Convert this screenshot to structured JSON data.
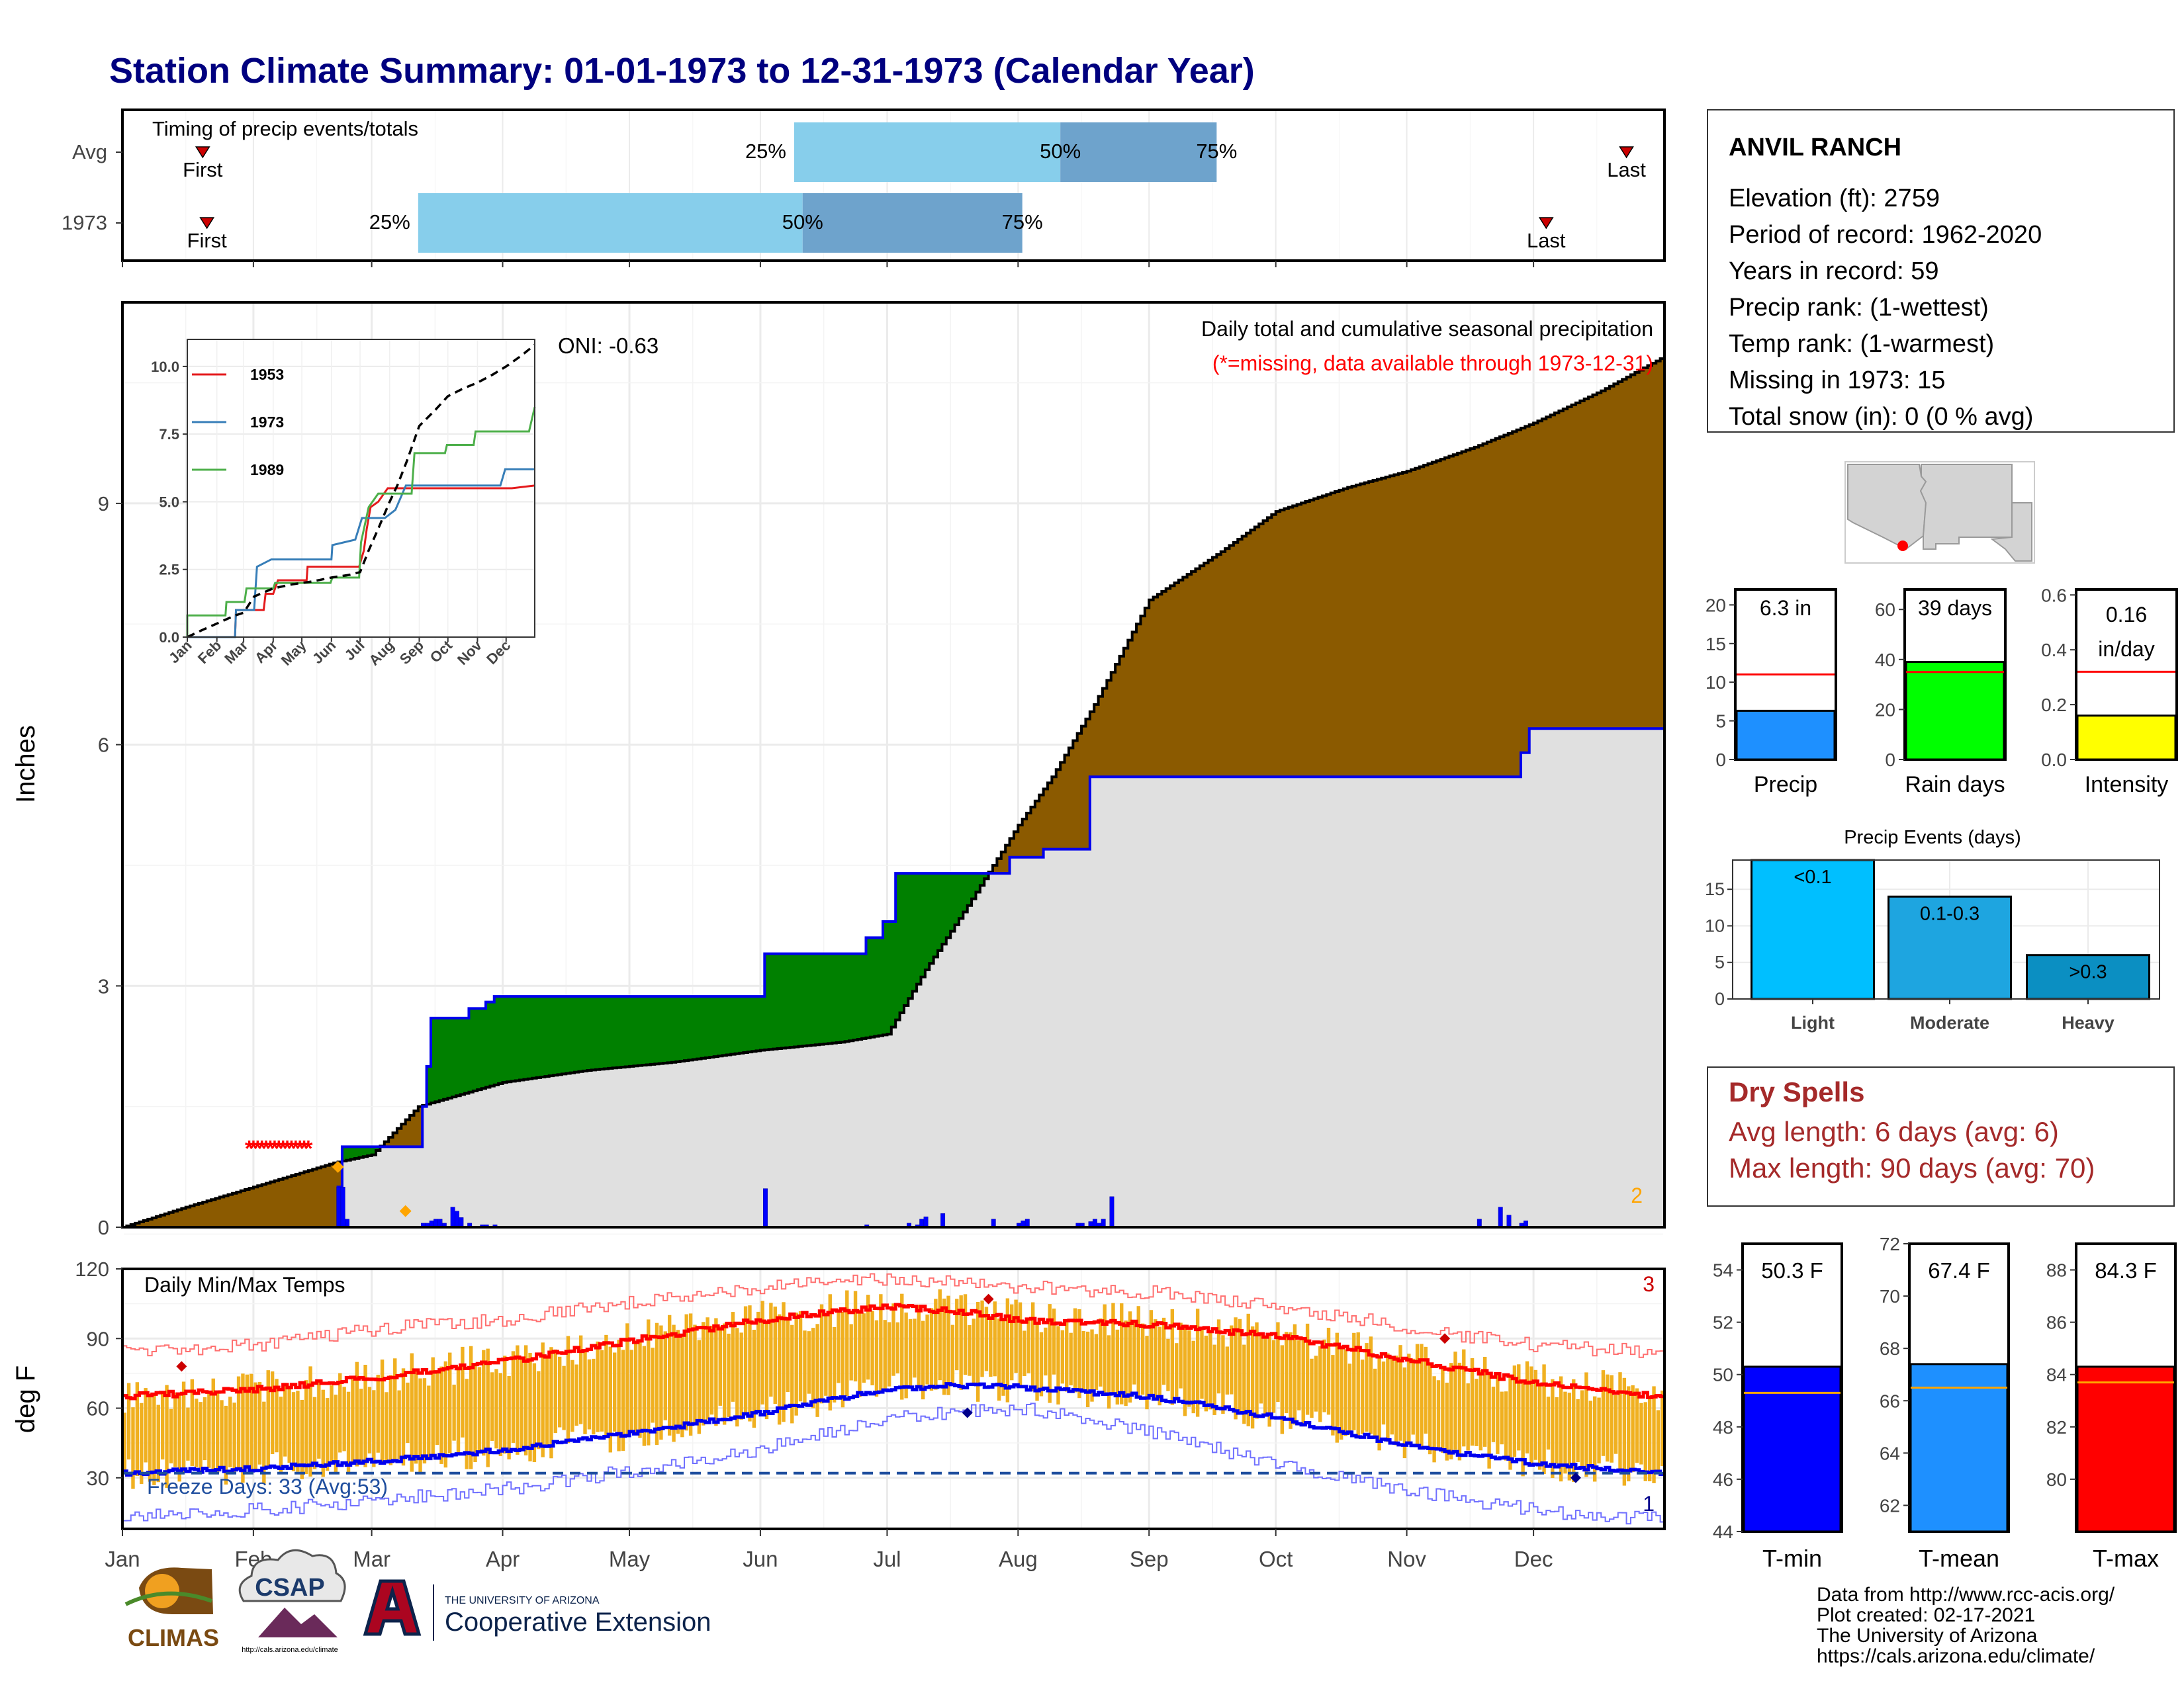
{
  "title": "Station Climate Summary: 01-01-1973 to 12-31-1973 (Calendar Year)",
  "timing": {
    "label": "Timing of precip events/totals",
    "rows": [
      {
        "name": "Avg",
        "first_day": 19,
        "last_day": 356,
        "q25": 159,
        "q50": 222,
        "q75": 259
      },
      {
        "name": "1973",
        "first_day": 20,
        "last_day": 337,
        "q25": 70,
        "q50": 161,
        "q75": 213
      }
    ],
    "first_label": "First",
    "last_label": "Last",
    "q25_label": "25%",
    "q50_label": "50%",
    "q75_label": "75%"
  },
  "precip": {
    "ylabel": "Inches",
    "ytick_labels": [
      "0",
      "3",
      "6",
      "9"
    ],
    "oni_label": "ONI: -0.63",
    "caption": "Daily total and cumulative seasonal precipitation",
    "missing_note": "(*=missing, data available through 1973-12-31)",
    "corner_count": "2",
    "ylim": [
      0,
      11.5
    ],
    "cumulative_avg": [
      [
        0,
        0
      ],
      [
        15,
        0.25
      ],
      [
        31,
        0.5
      ],
      [
        50,
        0.8
      ],
      [
        59,
        0.9
      ],
      [
        70,
        1.5
      ],
      [
        90,
        1.8
      ],
      [
        110,
        1.95
      ],
      [
        130,
        2.05
      ],
      [
        151,
        2.2
      ],
      [
        170,
        2.3
      ],
      [
        181,
        2.4
      ],
      [
        190,
        3.2
      ],
      [
        200,
        4.0
      ],
      [
        212,
        5.0
      ],
      [
        220,
        5.6
      ],
      [
        230,
        6.5
      ],
      [
        243,
        7.8
      ],
      [
        260,
        8.4
      ],
      [
        273,
        8.9
      ],
      [
        290,
        9.2
      ],
      [
        304,
        9.4
      ],
      [
        320,
        9.7
      ],
      [
        334,
        10.0
      ],
      [
        350,
        10.4
      ],
      [
        364,
        10.8
      ]
    ],
    "cumulative_1973": [
      [
        0,
        0
      ],
      [
        50,
        0
      ],
      [
        51,
        0.5
      ],
      [
        52,
        1.0
      ],
      [
        70,
        1.0
      ],
      [
        71,
        1.5
      ],
      [
        72,
        2.0
      ],
      [
        73,
        2.6
      ],
      [
        80,
        2.6
      ],
      [
        82,
        2.72
      ],
      [
        86,
        2.8
      ],
      [
        88,
        2.87
      ],
      [
        151,
        2.87
      ],
      [
        152,
        3.4
      ],
      [
        172,
        3.4
      ],
      [
        176,
        3.6
      ],
      [
        180,
        3.8
      ],
      [
        183,
        4.4
      ],
      [
        207,
        4.4
      ],
      [
        210,
        4.6
      ],
      [
        218,
        4.7
      ],
      [
        229,
        5.6
      ],
      [
        328,
        5.6
      ],
      [
        331,
        5.9
      ],
      [
        333,
        6.2
      ],
      [
        364,
        6.2
      ]
    ],
    "missing_days": [
      30,
      31,
      32,
      33,
      34,
      35,
      36,
      37,
      38,
      39,
      40,
      41,
      42,
      43,
      44
    ],
    "daily_bars": [
      [
        51,
        0.5
      ],
      [
        52,
        0.5
      ],
      [
        53,
        0.1
      ],
      [
        71,
        0.05
      ],
      [
        72,
        0.05
      ],
      [
        73,
        0.08
      ],
      [
        74,
        0.1
      ],
      [
        75,
        0.1
      ],
      [
        76,
        0.05
      ],
      [
        78,
        0.25
      ],
      [
        79,
        0.2
      ],
      [
        80,
        0.12
      ],
      [
        82,
        0.05
      ],
      [
        85,
        0.03
      ],
      [
        86,
        0.03
      ],
      [
        88,
        0.03
      ],
      [
        152,
        0.48
      ],
      [
        176,
        0.03
      ],
      [
        186,
        0.05
      ],
      [
        188,
        0.03
      ],
      [
        189,
        0.1
      ],
      [
        190,
        0.13
      ],
      [
        194,
        0.17
      ],
      [
        206,
        0.1
      ],
      [
        212,
        0.05
      ],
      [
        213,
        0.08
      ],
      [
        214,
        0.1
      ],
      [
        226,
        0.05
      ],
      [
        227,
        0.05
      ],
      [
        229,
        0.07
      ],
      [
        230,
        0.1
      ],
      [
        231,
        0.05
      ],
      [
        232,
        0.1
      ],
      [
        234,
        0.38
      ],
      [
        321,
        0.1
      ],
      [
        326,
        0.25
      ],
      [
        328,
        0.15
      ],
      [
        331,
        0.05
      ],
      [
        332,
        0.08
      ]
    ],
    "orange_markers": [
      [
        51,
        0.75
      ],
      [
        67,
        0.2
      ]
    ],
    "inset": {
      "ytick_labels": [
        "0.0",
        "2.5",
        "5.0",
        "7.5",
        "10.0"
      ],
      "month_labels": [
        "Jan",
        "Feb",
        "Mar",
        "Apr",
        "May",
        "Jun",
        "Jul",
        "Aug",
        "Sep",
        "Oct",
        "Nov",
        "Dec"
      ],
      "ylim": [
        0,
        11
      ],
      "series": [
        {
          "name": "1953",
          "color": "#e41a1c",
          "points": [
            [
              0,
              0
            ],
            [
              50,
              0
            ],
            [
              51,
              1.0
            ],
            [
              80,
              1.0
            ],
            [
              82,
              1.6
            ],
            [
              90,
              1.6
            ],
            [
              95,
              2.1
            ],
            [
              125,
              2.1
            ],
            [
              126,
              2.6
            ],
            [
              180,
              2.6
            ],
            [
              185,
              3.2
            ],
            [
              188,
              4.0
            ],
            [
              192,
              4.8
            ],
            [
              200,
              5.0
            ],
            [
              210,
              5.5
            ],
            [
              260,
              5.5
            ],
            [
              300,
              5.5
            ],
            [
              340,
              5.5
            ],
            [
              364,
              5.6
            ]
          ]
        },
        {
          "name": "1973",
          "color": "#377eb8",
          "points": [
            [
              0,
              0
            ],
            [
              50,
              0
            ],
            [
              51,
              1.0
            ],
            [
              70,
              1.0
            ],
            [
              73,
              2.6
            ],
            [
              88,
              2.87
            ],
            [
              151,
              2.87
            ],
            [
              152,
              3.4
            ],
            [
              176,
              3.6
            ],
            [
              183,
              4.4
            ],
            [
              207,
              4.4
            ],
            [
              218,
              4.7
            ],
            [
              229,
              5.6
            ],
            [
              328,
              5.6
            ],
            [
              333,
              6.2
            ],
            [
              364,
              6.2
            ]
          ]
        },
        {
          "name": "1989",
          "color": "#4daf4a",
          "points": [
            [
              0,
              0
            ],
            [
              0,
              0.8
            ],
            [
              40,
              0.8
            ],
            [
              41,
              1.3
            ],
            [
              60,
              1.3
            ],
            [
              62,
              1.8
            ],
            [
              90,
              1.8
            ],
            [
              92,
              2.0
            ],
            [
              150,
              2.0
            ],
            [
              152,
              2.2
            ],
            [
              180,
              2.2
            ],
            [
              182,
              3.5
            ],
            [
              190,
              4.8
            ],
            [
              200,
              5.3
            ],
            [
              235,
              5.3
            ],
            [
              238,
              6.8
            ],
            [
              270,
              6.8
            ],
            [
              272,
              7.1
            ],
            [
              300,
              7.1
            ],
            [
              302,
              7.6
            ],
            [
              358,
              7.6
            ],
            [
              364,
              8.5
            ]
          ]
        }
      ],
      "cumulative_avg_dashed": true
    }
  },
  "temps": {
    "ylabel": "deg F",
    "ytick_labels": [
      "30",
      "60",
      "90",
      "120"
    ],
    "ylim": [
      8,
      120
    ],
    "label": "Daily Min/Max Temps",
    "freeze_label": "Freeze Days: 33 (Avg:53)",
    "corner_top": "3",
    "corner_bottom": "1",
    "freeze_line": 32,
    "avg_max": [
      [
        0,
        65
      ],
      [
        31,
        68
      ],
      [
        59,
        73
      ],
      [
        90,
        80
      ],
      [
        120,
        89
      ],
      [
        151,
        98
      ],
      [
        181,
        104
      ],
      [
        196,
        102
      ],
      [
        212,
        98
      ],
      [
        243,
        96
      ],
      [
        273,
        91
      ],
      [
        304,
        81
      ],
      [
        334,
        71
      ],
      [
        364,
        65
      ]
    ],
    "avg_min": [
      [
        0,
        32
      ],
      [
        31,
        34
      ],
      [
        59,
        37
      ],
      [
        90,
        42
      ],
      [
        120,
        49
      ],
      [
        151,
        58
      ],
      [
        181,
        68
      ],
      [
        196,
        70
      ],
      [
        212,
        69
      ],
      [
        243,
        65
      ],
      [
        273,
        56
      ],
      [
        304,
        44
      ],
      [
        334,
        36
      ],
      [
        364,
        32
      ]
    ],
    "record_high": [
      [
        0,
        84
      ],
      [
        31,
        87
      ],
      [
        59,
        94
      ],
      [
        90,
        98
      ],
      [
        120,
        106
      ],
      [
        151,
        112
      ],
      [
        181,
        116
      ],
      [
        212,
        112
      ],
      [
        243,
        110
      ],
      [
        273,
        104
      ],
      [
        304,
        95
      ],
      [
        334,
        87
      ],
      [
        364,
        84
      ]
    ],
    "record_low": [
      [
        0,
        14
      ],
      [
        31,
        16
      ],
      [
        59,
        20
      ],
      [
        90,
        25
      ],
      [
        120,
        33
      ],
      [
        151,
        42
      ],
      [
        181,
        56
      ],
      [
        212,
        60
      ],
      [
        243,
        50
      ],
      [
        273,
        36
      ],
      [
        304,
        25
      ],
      [
        334,
        16
      ],
      [
        364,
        12
      ]
    ],
    "extreme_markers": [
      {
        "day": 14,
        "value": 78,
        "color": "#cc0000"
      },
      {
        "day": 205,
        "value": 107,
        "color": "#cc0000"
      },
      {
        "day": 313,
        "value": 90,
        "color": "#cc0000"
      },
      {
        "day": 200,
        "value": 58,
        "color": "#00008b"
      },
      {
        "day": 344,
        "value": 30,
        "color": "#00008b"
      }
    ]
  },
  "xaxis": {
    "months": [
      "Jan",
      "Feb",
      "Mar",
      "Apr",
      "May",
      "Jun",
      "Jul",
      "Aug",
      "Sep",
      "Oct",
      "Nov",
      "Dec"
    ],
    "month_start_days": [
      0,
      31,
      59,
      90,
      120,
      151,
      181,
      212,
      243,
      273,
      304,
      334
    ]
  },
  "station": {
    "name": "ANVIL RANCH",
    "lines": [
      "Elevation (ft): 2759",
      "Period of record: 1962-2020",
      "Years in record: 59",
      "Precip rank:  (1-wettest)",
      "Temp rank:  (1-warmest)",
      "Missing in 1973: 15",
      "Total snow (in): 0 (0 % avg)"
    ]
  },
  "summary_bars": [
    {
      "name": "Precip",
      "label": "6.3 in",
      "value": 6.3,
      "avg": 11.0,
      "ylim": [
        0,
        22
      ],
      "ticks": [
        "0",
        "5",
        "10",
        "15",
        "20"
      ],
      "tick_values": [
        0,
        5,
        10,
        15,
        20
      ],
      "color": "#1e90ff"
    },
    {
      "name": "Rain days",
      "label": "39 days",
      "value": 39,
      "avg": 35,
      "ylim": [
        0,
        68
      ],
      "ticks": [
        "0",
        "20",
        "40",
        "60"
      ],
      "tick_values": [
        0,
        20,
        40,
        60
      ],
      "color": "#00ff00"
    },
    {
      "name": "Intensity",
      "label_lines": [
        "0.16",
        "in/day"
      ],
      "value": 0.16,
      "avg": 0.32,
      "ylim": [
        0,
        0.62
      ],
      "ticks": [
        "0.0",
        "0.2",
        "0.4",
        "0.6"
      ],
      "tick_values": [
        0,
        0.2,
        0.4,
        0.6
      ],
      "color": "#ffff00"
    }
  ],
  "events": {
    "title": "Precip Events (days)",
    "ytick_labels": [
      "0",
      "5",
      "10",
      "15"
    ],
    "ylim": [
      0,
      19
    ],
    "categories": [
      "Light",
      "Moderate",
      "Heavy"
    ],
    "bin_labels": [
      "<0.1",
      "0.1-0.3",
      ">0.3"
    ],
    "values": [
      19,
      14,
      6
    ],
    "colors": [
      "#00bfff",
      "#1ea5e0",
      "#0b8fc2"
    ]
  },
  "dry_spells": {
    "title": "Dry Spells",
    "avg_line": "Avg length: 6 days (avg: 6)",
    "max_line": "Max length: 90 days (avg: 70)"
  },
  "temp_bars": [
    {
      "name": "T-min",
      "label": "50.3 F",
      "value": 50.3,
      "avg": 49.3,
      "ylim": [
        44,
        55
      ],
      "ticks": [
        "44",
        "46",
        "48",
        "50",
        "52",
        "54"
      ],
      "tick_values": [
        44,
        46,
        48,
        50,
        52,
        54
      ],
      "color": "#0000ff"
    },
    {
      "name": "T-mean",
      "label": "67.4 F",
      "value": 67.4,
      "avg": 66.5,
      "ylim": [
        61,
        72
      ],
      "ticks": [
        "62",
        "64",
        "66",
        "68",
        "70",
        "72"
      ],
      "tick_values": [
        62,
        64,
        66,
        68,
        70,
        72
      ],
      "color": "#1e90ff"
    },
    {
      "name": "T-max",
      "label": "84.3 F",
      "value": 84.3,
      "avg": 83.7,
      "ylim": [
        78,
        89
      ],
      "ticks": [
        "80",
        "82",
        "84",
        "86",
        "88"
      ],
      "tick_values": [
        80,
        82,
        84,
        86,
        88
      ],
      "color": "#ff0000"
    }
  ],
  "credits": [
    "Data from http://www.rcc-acis.org/",
    "Plot created: 02-17-2021",
    "The University of Arizona",
    "https://cals.arizona.edu/climate/"
  ],
  "logos": {
    "climas": "CLIMAS",
    "csap": "CSAP",
    "csap_url": "http://cals.arizona.edu/climate",
    "ua_small": "THE UNIVERSITY OF ARIZONA",
    "ua_big": "Cooperative Extension"
  },
  "colors": {
    "title": "#00007f",
    "brown": "#8b5a00",
    "green": "#008000",
    "gray_fill": "#e0e0e0",
    "blue_line": "#0000ee",
    "tmax": "#ff0000",
    "tmin": "#0000ff",
    "temp_bar": "#f0b020",
    "avg_mark": "#ffa500",
    "dry_text": "#a52a2a",
    "q_light": "#87ceeb",
    "q_dark": "#6ea3cc"
  }
}
